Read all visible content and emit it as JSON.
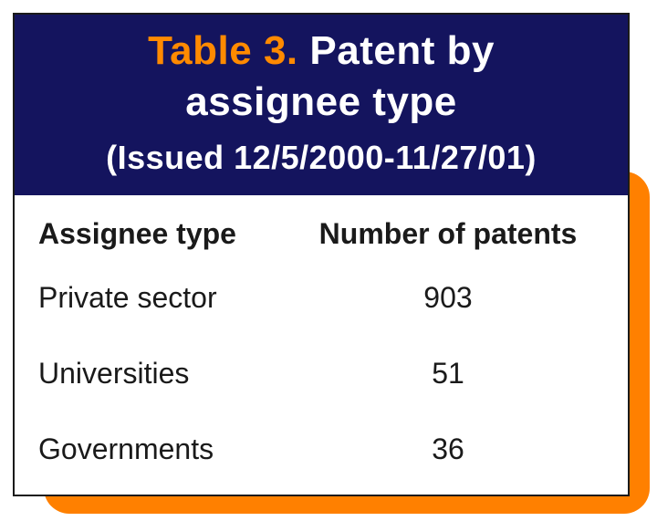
{
  "title": {
    "label": "Table 3.",
    "text": "Patent by assignee type"
  },
  "subtitle": "(Issued 12/5/2000-11/27/01)",
  "table": {
    "header": [
      "Assignee type",
      "Number of patents"
    ],
    "rows": [
      [
        "Private sector",
        903
      ],
      [
        "Universities",
        51
      ],
      [
        "Governments",
        36
      ]
    ]
  }
}
